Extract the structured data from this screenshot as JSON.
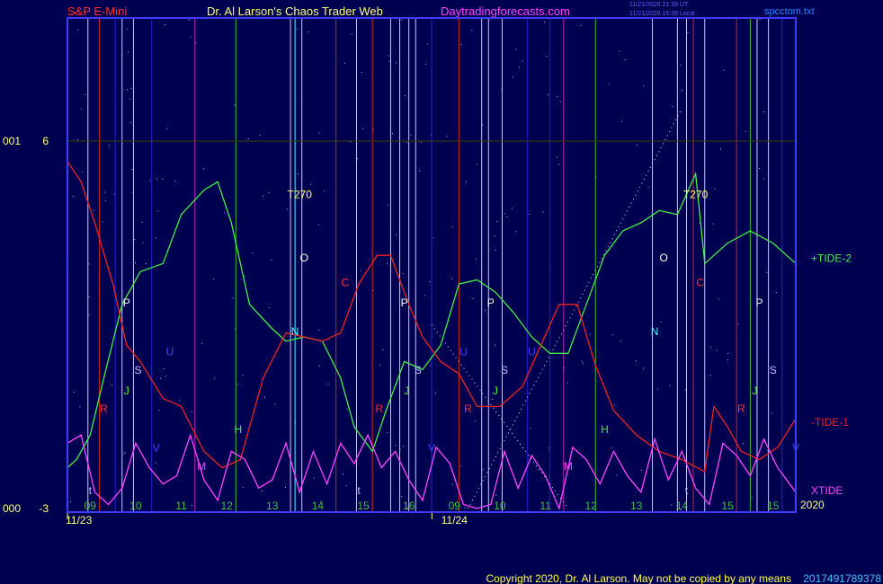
{
  "header": {
    "symbol": "S&P E-Mini",
    "author": "Dr. Al Larson's Chaos Trader Web",
    "site": "Daytradingforecasts.com",
    "stamp_ut": "11/21/2020 21:39 UT",
    "stamp_local": "11/21/2020 15:39 Local",
    "file": "spcctom.txt"
  },
  "footer": {
    "copyright": "Copyright 2020, Dr. Al Larson. May not be copied by any means",
    "code": "2017491789378"
  },
  "colors": {
    "background": "#000050",
    "frame": "#3c3cff",
    "tide2": "#44ee44",
    "tide1": "#ee2222",
    "xtide": "#ff44ff",
    "title_red": "#ff3030",
    "title_yellow": "#ffff80",
    "title_magenta": "#ff40ff"
  },
  "chart_data": {
    "type": "line",
    "y_axis": {
      "ticks": [
        {
          "value": 6,
          "label": "6",
          "sublabel": "001"
        },
        {
          "value": -3,
          "label": "-3",
          "sublabel": "000"
        }
      ],
      "ylim": [
        -3,
        6
      ]
    },
    "x_axis": {
      "hour_labels": [
        "09",
        "10",
        "11",
        "12",
        "13",
        "14",
        "15",
        "16",
        "09",
        "10",
        "11",
        "12",
        "13",
        "14",
        "15",
        "15"
      ],
      "hour_positions": [
        0.5,
        1.5,
        2.5,
        3.5,
        4.5,
        5.5,
        6.5,
        7.5,
        8.5,
        9.5,
        10.5,
        11.5,
        12.5,
        13.5,
        14.5,
        15.5
      ],
      "date_labels": [
        {
          "label": "11/23",
          "at": 0.25
        },
        {
          "label": "11/24",
          "at": 8.5
        }
      ],
      "year_label": "2020",
      "xlim": [
        0,
        16
      ]
    },
    "series": [
      {
        "name": "+TIDE-2",
        "x": [
          0,
          0.2,
          0.5,
          0.8,
          1.2,
          1.6,
          2.1,
          2.5,
          3.0,
          3.3,
          3.6,
          4.0,
          4.5,
          4.8,
          5.2,
          5.6,
          6.0,
          6.3,
          6.7,
          7.0,
          7.4,
          7.8,
          8.2,
          8.6,
          9.0,
          9.4,
          9.8,
          10.2,
          10.6,
          11.0,
          11.4,
          11.8,
          12.2,
          12.6,
          13.0,
          13.4,
          13.8,
          14.0,
          14.5,
          15.0,
          15.5,
          16.0
        ],
        "y": [
          -2.0,
          -1.8,
          -1.2,
          0.2,
          2.0,
          2.8,
          3.0,
          4.2,
          4.8,
          5.0,
          4.0,
          2.0,
          1.4,
          1.1,
          1.2,
          1.1,
          0.2,
          -1.0,
          -1.6,
          -0.6,
          0.6,
          0.4,
          1.0,
          2.5,
          2.6,
          2.3,
          1.8,
          1.2,
          0.8,
          0.8,
          2.0,
          3.2,
          3.8,
          4.0,
          4.3,
          4.2,
          5.2,
          3.0,
          3.5,
          3.8,
          3.5,
          3.0
        ]
      },
      {
        "name": "-TIDE-1",
        "x": [
          0,
          0.3,
          0.6,
          1.0,
          1.3,
          1.6,
          2.1,
          2.5,
          3.0,
          3.4,
          3.8,
          4.3,
          4.8,
          5.2,
          5.6,
          6.0,
          6.4,
          6.8,
          7.1,
          7.5,
          7.8,
          8.2,
          8.6,
          9.0,
          9.5,
          10.0,
          10.4,
          10.8,
          11.2,
          11.6,
          12.0,
          12.5,
          13.0,
          13.5,
          14.0,
          14.2,
          14.5,
          14.8,
          15.2,
          15.6,
          16.0
        ],
        "y": [
          5.5,
          5.0,
          4.0,
          2.5,
          1.0,
          0.6,
          -0.3,
          -0.5,
          -1.6,
          -2.0,
          -1.8,
          0.2,
          1.3,
          1.2,
          1.1,
          1.3,
          2.5,
          3.2,
          3.2,
          2.0,
          1.2,
          0.6,
          0.3,
          -0.5,
          -0.5,
          0.0,
          1.0,
          2.0,
          2.0,
          0.5,
          -0.6,
          -1.2,
          -1.6,
          -1.8,
          -2.1,
          -0.5,
          -1.0,
          -1.6,
          -1.8,
          -1.5,
          -0.8
        ]
      },
      {
        "name": "XTIDE",
        "x": [
          0,
          0.3,
          0.6,
          0.9,
          1.2,
          1.5,
          1.8,
          2.1,
          2.4,
          2.7,
          3.0,
          3.3,
          3.6,
          3.9,
          4.2,
          4.5,
          4.8,
          5.1,
          5.4,
          5.7,
          6.0,
          6.3,
          6.6,
          6.9,
          7.2,
          7.5,
          7.8,
          8.1,
          8.4,
          8.7,
          9.0,
          9.3,
          9.6,
          9.9,
          10.2,
          10.5,
          10.8,
          11.1,
          11.4,
          11.7,
          12.0,
          12.3,
          12.6,
          12.9,
          13.2,
          13.5,
          13.8,
          14.1,
          14.4,
          14.7,
          15.0,
          15.3,
          15.6,
          16.0
        ],
        "y": [
          -1.4,
          -1.2,
          -2.6,
          -2.9,
          -2.5,
          -1.4,
          -2.0,
          -2.4,
          -2.2,
          -1.2,
          -2.3,
          -2.8,
          -1.6,
          -1.8,
          -2.5,
          -2.3,
          -1.4,
          -2.6,
          -1.6,
          -2.4,
          -1.4,
          -1.9,
          -1.2,
          -2.0,
          -1.6,
          -2.3,
          -2.8,
          -1.5,
          -1.9,
          -2.9,
          -3.0,
          -2.9,
          -1.6,
          -2.5,
          -1.7,
          -2.2,
          -3.0,
          -1.5,
          -1.8,
          -2.4,
          -1.6,
          -2.2,
          -2.6,
          -1.3,
          -2.3,
          -1.6,
          -2.5,
          -2.9,
          -1.4,
          -1.7,
          -2.2,
          -1.3,
          -2.0,
          -2.6
        ]
      }
    ],
    "annotations": [
      {
        "text": "T270",
        "x": 5.1,
        "y": 4.6,
        "color": "#ffff80"
      },
      {
        "text": "T270",
        "x": 13.8,
        "y": 4.6,
        "color": "#ffff80"
      },
      {
        "text": "O",
        "x": 5.2,
        "y": 3.05,
        "color": "#ffffff"
      },
      {
        "text": "O",
        "x": 13.1,
        "y": 3.05,
        "color": "#ffffff"
      },
      {
        "text": "C",
        "x": 6.1,
        "y": 2.45,
        "color": "#ff3030"
      },
      {
        "text": "C",
        "x": 13.9,
        "y": 2.45,
        "color": "#ff3030"
      },
      {
        "text": "P",
        "x": 1.3,
        "y": 1.95,
        "color": "#ffffff"
      },
      {
        "text": "P",
        "x": 7.4,
        "y": 1.95,
        "color": "#ffffff"
      },
      {
        "text": "P",
        "x": 9.3,
        "y": 1.95,
        "color": "#ffffff"
      },
      {
        "text": "P",
        "x": 15.2,
        "y": 1.95,
        "color": "#ffffff"
      },
      {
        "text": "N",
        "x": 5.0,
        "y": 1.25,
        "color": "#40ffff"
      },
      {
        "text": "N",
        "x": 12.9,
        "y": 1.25,
        "color": "#40ffff"
      },
      {
        "text": "U",
        "x": 2.25,
        "y": 0.75,
        "color": "#4040ff"
      },
      {
        "text": "U",
        "x": 8.7,
        "y": 0.75,
        "color": "#4040ff"
      },
      {
        "text": "U",
        "x": 10.2,
        "y": 0.75,
        "color": "#4040ff"
      },
      {
        "text": "S",
        "x": 1.55,
        "y": 0.3,
        "color": "#c0c0ff"
      },
      {
        "text": "S",
        "x": 7.7,
        "y": 0.3,
        "color": "#c0c0ff"
      },
      {
        "text": "S",
        "x": 9.6,
        "y": 0.3,
        "color": "#c0c0ff"
      },
      {
        "text": "S",
        "x": 15.5,
        "y": 0.3,
        "color": "#c0c0ff"
      },
      {
        "text": "J",
        "x": 1.3,
        "y": -0.2,
        "color": "#44ee44"
      },
      {
        "text": "J",
        "x": 7.45,
        "y": -0.2,
        "color": "#44ee44"
      },
      {
        "text": "J",
        "x": 9.4,
        "y": -0.2,
        "color": "#44ee44"
      },
      {
        "text": "J",
        "x": 15.1,
        "y": -0.2,
        "color": "#44ee44"
      },
      {
        "text": "R",
        "x": 0.8,
        "y": -0.65,
        "color": "#ff3030"
      },
      {
        "text": "R",
        "x": 6.85,
        "y": -0.65,
        "color": "#ff3030"
      },
      {
        "text": "R",
        "x": 8.8,
        "y": -0.65,
        "color": "#ff3030"
      },
      {
        "text": "R",
        "x": 14.8,
        "y": -0.65,
        "color": "#ff3030"
      },
      {
        "text": "H",
        "x": 3.75,
        "y": -1.15,
        "color": "#44ee44"
      },
      {
        "text": "H",
        "x": 11.8,
        "y": -1.15,
        "color": "#44ee44"
      },
      {
        "text": "V",
        "x": 1.95,
        "y": -1.6,
        "color": "#4040ff"
      },
      {
        "text": "V",
        "x": 8.0,
        "y": -1.6,
        "color": "#4040ff"
      },
      {
        "text": "V",
        "x": 16.0,
        "y": -1.6,
        "color": "#4040ff"
      },
      {
        "text": "M",
        "x": 2.95,
        "y": -2.05,
        "color": "#ff44ff"
      },
      {
        "text": "M",
        "x": 11.0,
        "y": -2.05,
        "color": "#ff44ff"
      },
      {
        "text": "t",
        "x": 0.5,
        "y": -2.65,
        "color": "#c0c0ff"
      },
      {
        "text": "t",
        "x": 6.4,
        "y": -2.65,
        "color": "#c0c0ff"
      },
      {
        "text": "t",
        "x": 13.6,
        "y": -2.65,
        "color": "#c0c0ff"
      }
    ],
    "vertical_lines": [
      {
        "x": 0.45,
        "color": "#c8c8ff"
      },
      {
        "x": 0.7,
        "color": "#d02020"
      },
      {
        "x": 1.05,
        "color": "#2020d0"
      },
      {
        "x": 1.2,
        "color": "#c8c8ff"
      },
      {
        "x": 1.45,
        "color": "#c8c8ff"
      },
      {
        "x": 1.85,
        "color": "#2020d0"
      },
      {
        "x": 2.8,
        "color": "#c020c0"
      },
      {
        "x": 3.7,
        "color": "#30c030"
      },
      {
        "x": 4.9,
        "color": "#c8c8ff"
      },
      {
        "x": 5.0,
        "color": "#40ffff"
      },
      {
        "x": 5.15,
        "color": "#c8c8ff"
      },
      {
        "x": 5.9,
        "color": "#d02020"
      },
      {
        "x": 6.35,
        "color": "#c8c8ff"
      },
      {
        "x": 6.7,
        "color": "#d02020"
      },
      {
        "x": 7.1,
        "color": "#c8c8ff"
      },
      {
        "x": 7.3,
        "color": "#c8c8ff"
      },
      {
        "x": 7.5,
        "color": "#c8c8ff"
      },
      {
        "x": 7.65,
        "color": "#c8c8ff"
      },
      {
        "x": 8.0,
        "color": "#2020d0"
      },
      {
        "x": 8.6,
        "color": "#d02020"
      },
      {
        "x": 9.1,
        "color": "#c8c8ff"
      },
      {
        "x": 9.25,
        "color": "#c8c8ff"
      },
      {
        "x": 9.55,
        "color": "#c8c8ff"
      },
      {
        "x": 10.1,
        "color": "#2020d0"
      },
      {
        "x": 10.6,
        "color": "#2020d0"
      },
      {
        "x": 10.9,
        "color": "#c020c0"
      },
      {
        "x": 11.6,
        "color": "#30c030"
      },
      {
        "x": 12.85,
        "color": "#40ffff"
      },
      {
        "x": 13.4,
        "color": "#c8c8ff"
      },
      {
        "x": 13.6,
        "color": "#c8c8ff"
      },
      {
        "x": 13.75,
        "color": "#d02020"
      },
      {
        "x": 14.0,
        "color": "#c8c8ff"
      },
      {
        "x": 14.7,
        "color": "#d02020"
      },
      {
        "x": 15.0,
        "color": "#30c030"
      },
      {
        "x": 15.15,
        "color": "#c8c8ff"
      },
      {
        "x": 15.4,
        "color": "#c8c8ff"
      },
      {
        "x": 15.7,
        "color": "#2020d0"
      }
    ]
  }
}
